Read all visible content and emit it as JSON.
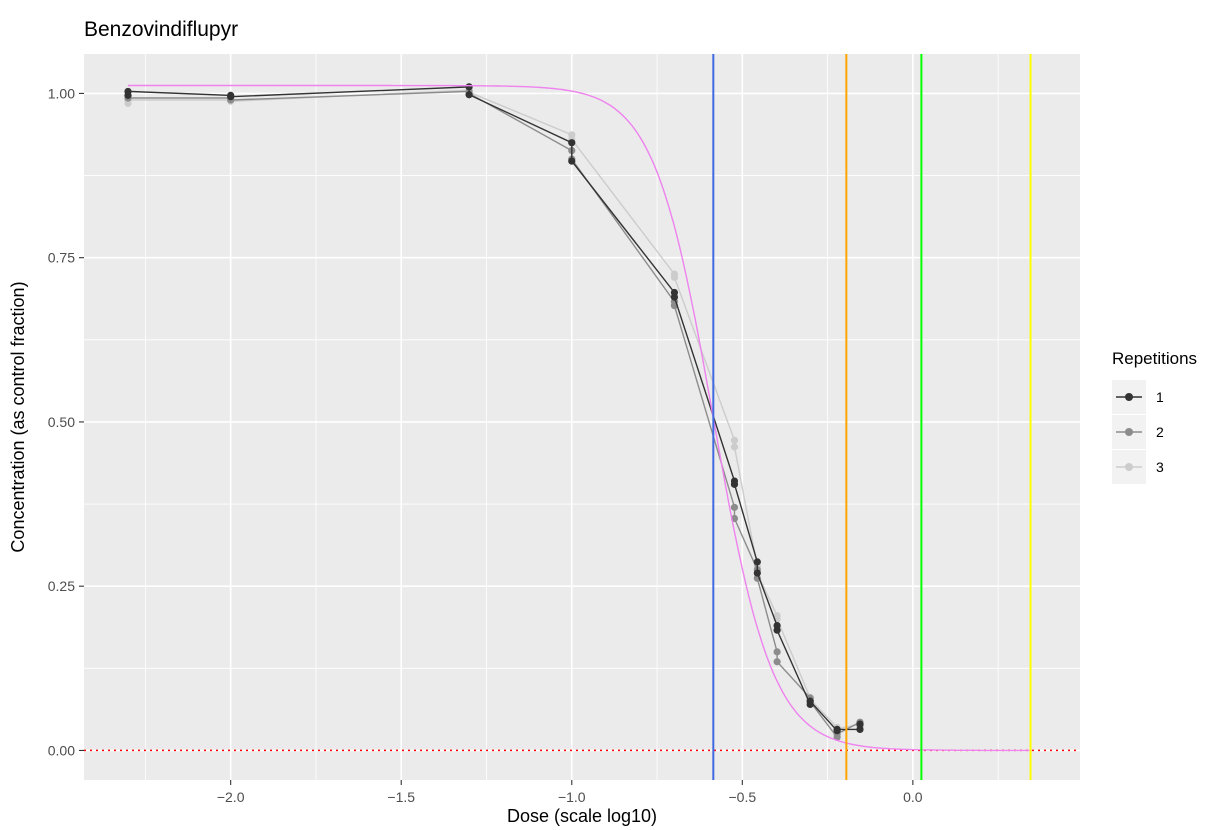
{
  "chart_data": {
    "type": "line",
    "title": "Benzovindiflupyr",
    "xlabel": "Dose (scale log10)",
    "ylabel": "Concentration (as control fraction)",
    "xlim": [
      -2.43,
      0.49
    ],
    "ylim": [
      -0.045,
      1.06
    ],
    "x_ticks": [
      -2.0,
      -1.5,
      -1.0,
      -0.5,
      0.0
    ],
    "x_tick_labels": [
      "−2.0",
      "−1.5",
      "−1.0",
      "−0.5",
      "0.0"
    ],
    "y_ticks": [
      0.0,
      0.25,
      0.5,
      0.75,
      1.0
    ],
    "y_tick_labels": [
      "0.00",
      "0.25",
      "0.50",
      "0.75",
      "1.00"
    ],
    "grid": true,
    "legend": {
      "title": "Repetitions",
      "position": "right",
      "entries": [
        {
          "label": "1",
          "color": "#333333"
        },
        {
          "label": "2",
          "color": "#8c8c8c"
        },
        {
          "label": "3",
          "color": "#cccccc"
        }
      ]
    },
    "series": [
      {
        "name": "1",
        "color": "#333333",
        "points": [
          [
            -2.301,
            0.997
          ],
          [
            -2.301,
            1.003
          ],
          [
            -2.0,
            0.997
          ],
          [
            -2.0,
            0.995
          ],
          [
            -1.301,
            1.01
          ],
          [
            -1.301,
            0.998
          ],
          [
            -1.0,
            0.925
          ],
          [
            -1.0,
            0.897
          ],
          [
            -0.699,
            0.697
          ],
          [
            -0.699,
            0.69
          ],
          [
            -0.523,
            0.41
          ],
          [
            -0.523,
            0.405
          ],
          [
            -0.456,
            0.287
          ],
          [
            -0.456,
            0.27
          ],
          [
            -0.398,
            0.19
          ],
          [
            -0.398,
            0.183
          ],
          [
            -0.301,
            0.07
          ],
          [
            -0.301,
            0.075
          ],
          [
            -0.222,
            0.03
          ],
          [
            -0.222,
            0.032
          ],
          [
            -0.155,
            0.032
          ],
          [
            -0.155,
            0.04
          ]
        ]
      },
      {
        "name": "2",
        "color": "#8c8c8c",
        "points": [
          [
            -2.301,
            0.997
          ],
          [
            -2.301,
            0.993
          ],
          [
            -2.0,
            0.993
          ],
          [
            -2.0,
            0.99
          ],
          [
            -1.301,
            1.003
          ],
          [
            -1.301,
            1.0
          ],
          [
            -1.0,
            0.913
          ],
          [
            -1.0,
            0.9
          ],
          [
            -0.699,
            0.683
          ],
          [
            -0.699,
            0.677
          ],
          [
            -0.523,
            0.37
          ],
          [
            -0.523,
            0.353
          ],
          [
            -0.456,
            0.275
          ],
          [
            -0.456,
            0.262
          ],
          [
            -0.398,
            0.15
          ],
          [
            -0.398,
            0.135
          ],
          [
            -0.301,
            0.08
          ],
          [
            -0.301,
            0.074
          ],
          [
            -0.222,
            0.02
          ],
          [
            -0.222,
            0.025
          ],
          [
            -0.155,
            0.043
          ],
          [
            -0.155,
            0.038
          ]
        ]
      },
      {
        "name": "3",
        "color": "#cccccc",
        "points": [
          [
            -2.301,
            0.985
          ],
          [
            -2.301,
            0.99
          ],
          [
            -2.0,
            0.99
          ],
          [
            -2.0,
            0.988
          ],
          [
            -1.301,
            1.005
          ],
          [
            -1.301,
            1.002
          ],
          [
            -1.0,
            0.937
          ],
          [
            -1.0,
            0.93
          ],
          [
            -0.699,
            0.725
          ],
          [
            -0.699,
            0.72
          ],
          [
            -0.523,
            0.472
          ],
          [
            -0.523,
            0.462
          ],
          [
            -0.456,
            0.28
          ],
          [
            -0.456,
            0.27
          ],
          [
            -0.398,
            0.205
          ],
          [
            -0.398,
            0.2
          ],
          [
            -0.301,
            0.08
          ],
          [
            -0.301,
            0.078
          ],
          [
            -0.222,
            0.035
          ],
          [
            -0.222,
            0.033
          ],
          [
            -0.155,
            0.04
          ],
          [
            -0.155,
            0.035
          ]
        ]
      }
    ],
    "fit_curve": {
      "color": "#ee82ee",
      "top": 1.012,
      "bottom": 0.0,
      "ec50_log": -0.585,
      "hill_slope": 5.0,
      "x_range": [
        -2.301,
        0.35
      ]
    },
    "reference_lines": {
      "vertical": [
        {
          "x": -0.585,
          "color": "#4169e1"
        },
        {
          "x": -0.195,
          "color": "#ffa500"
        },
        {
          "x": 0.025,
          "color": "#00ff00"
        },
        {
          "x": 0.345,
          "color": "#ffff00"
        }
      ],
      "horizontal": [
        {
          "y": 0.0,
          "color": "#ff0000",
          "style": "dotted"
        }
      ]
    }
  }
}
